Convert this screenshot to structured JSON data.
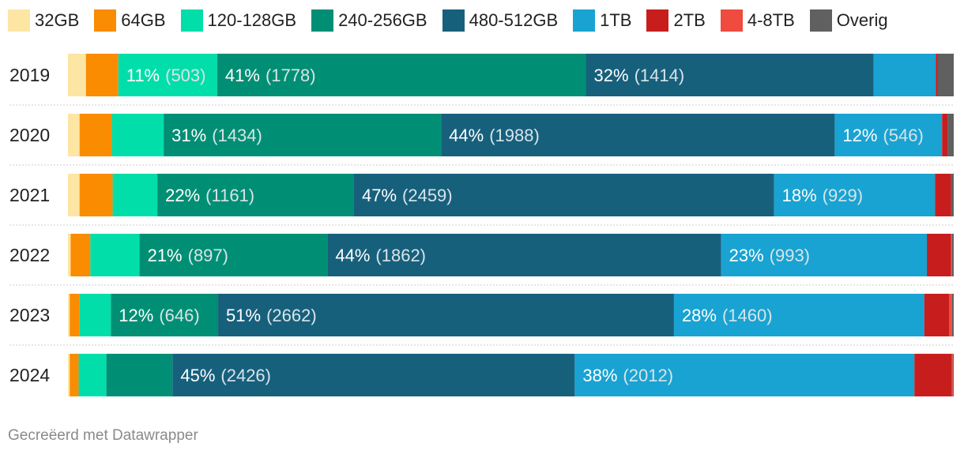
{
  "chart_data": {
    "type": "bar",
    "orientation": "horizontal",
    "stacked": true,
    "normalized": true,
    "legend_position": "top",
    "categories": [
      "2019",
      "2020",
      "2021",
      "2022",
      "2023",
      "2024"
    ],
    "series": [
      {
        "name": "32GB",
        "color": "#fde5a3",
        "values": [
          2.0,
          1.3,
          1.3,
          0.3,
          0.2,
          0.2
        ]
      },
      {
        "name": "64GB",
        "color": "#fa8c01",
        "values": [
          3.6,
          3.6,
          3.7,
          2.2,
          1.1,
          1.0
        ]
      },
      {
        "name": "120-128GB",
        "color": "#02deaa",
        "values": [
          11.0,
          5.8,
          5.0,
          5.5,
          3.5,
          3.1
        ]
      },
      {
        "name": "240-256GB",
        "color": "#008f74",
        "values": [
          41.0,
          31.0,
          22.0,
          21.0,
          12.0,
          7.4
        ]
      },
      {
        "name": "480-512GB",
        "color": "#17607c",
        "values": [
          32.0,
          44.0,
          47.0,
          44.0,
          51.0,
          45.0
        ]
      },
      {
        "name": "1TB",
        "color": "#19a3d2",
        "values": [
          6.9,
          12.0,
          18.0,
          23.0,
          28.0,
          38.0
        ]
      },
      {
        "name": "2TB",
        "color": "#c71e1d",
        "values": [
          0.2,
          0.6,
          1.8,
          2.7,
          2.8,
          4.2
        ]
      },
      {
        "name": "4-8TB",
        "color": "#ef4b3f",
        "values": [
          0.0,
          0.0,
          0.0,
          0.1,
          0.3,
          0.1
        ]
      },
      {
        "name": "Overig",
        "color": "#606060",
        "values": [
          1.8,
          0.7,
          0.3,
          0.2,
          0.2,
          0.1
        ]
      }
    ],
    "data_labels": [
      [
        {
          "series": "120-128GB",
          "pct": "11%",
          "count": "(503)"
        },
        {
          "series": "240-256GB",
          "pct": "41%",
          "count": "(1778)"
        },
        {
          "series": "480-512GB",
          "pct": "32%",
          "count": "(1414)"
        }
      ],
      [
        {
          "series": "240-256GB",
          "pct": "31%",
          "count": "(1434)"
        },
        {
          "series": "480-512GB",
          "pct": "44%",
          "count": "(1988)"
        },
        {
          "series": "1TB",
          "pct": "12%",
          "count": "(546)"
        }
      ],
      [
        {
          "series": "240-256GB",
          "pct": "22%",
          "count": "(1161)"
        },
        {
          "series": "480-512GB",
          "pct": "47%",
          "count": "(2459)"
        },
        {
          "series": "1TB",
          "pct": "18%",
          "count": "(929)"
        }
      ],
      [
        {
          "series": "240-256GB",
          "pct": "21%",
          "count": "(897)"
        },
        {
          "series": "480-512GB",
          "pct": "44%",
          "count": "(1862)"
        },
        {
          "series": "1TB",
          "pct": "23%",
          "count": "(993)"
        }
      ],
      [
        {
          "series": "240-256GB",
          "pct": "12%",
          "count": "(646)"
        },
        {
          "series": "480-512GB",
          "pct": "51%",
          "count": "(2662)"
        },
        {
          "series": "1TB",
          "pct": "28%",
          "count": "(1460)"
        }
      ],
      [
        {
          "series": "480-512GB",
          "pct": "45%",
          "count": "(2426)"
        },
        {
          "series": "1TB",
          "pct": "38%",
          "count": "(2012)"
        }
      ]
    ],
    "label_colors": {
      "pct": "#ffffff",
      "count": "#d8e4ea"
    },
    "separator_color": "#cccccc"
  },
  "credit": "Gecreëerd met Datawrapper"
}
